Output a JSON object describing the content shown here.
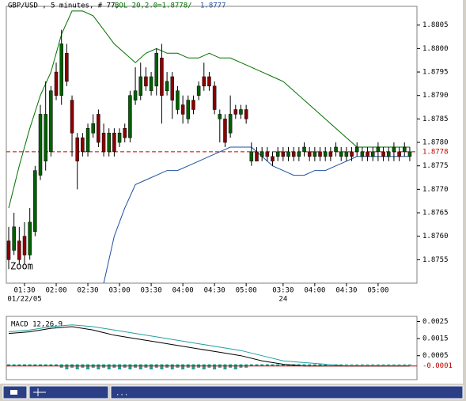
{
  "chart_data": [
    {
      "type": "candlestick",
      "title": "GBP/USD , 5 minutes, # 77,",
      "indicator_label": "BOL 20,2.0=1.8778/",
      "indicator_label_2": "1.8777",
      "annotation": "Zoom",
      "categories": [
        null,
        null,
        null,
        "01:30",
        null,
        null,
        null,
        null,
        null,
        "02:00",
        null,
        null,
        null,
        null,
        null,
        "02:30",
        null,
        null,
        null,
        null,
        null,
        "03:00",
        null,
        null,
        null,
        null,
        null,
        "03:30",
        null,
        null,
        null,
        null,
        null,
        "04:00",
        null,
        null,
        null,
        null,
        null,
        "04:30",
        null,
        null,
        null,
        null,
        null,
        "05:00",
        null,
        null,
        null,
        null,
        null,
        null,
        "03:30",
        null,
        null,
        null,
        null,
        null,
        "04:00",
        null,
        null,
        null,
        null,
        null,
        "04:30",
        null,
        null,
        null,
        null,
        null,
        "05:00",
        null,
        null,
        null,
        null,
        null,
        null
      ],
      "dates": [
        null,
        null,
        null,
        "01/22/05",
        null,
        null,
        null,
        null,
        null,
        null,
        null,
        null,
        null,
        null,
        null,
        null,
        null,
        null,
        null,
        null,
        null,
        null,
        null,
        null,
        null,
        null,
        null,
        null,
        null,
        null,
        null,
        null,
        null,
        null,
        null,
        null,
        null,
        null,
        null,
        null,
        null,
        null,
        null,
        null,
        null,
        null,
        null,
        null,
        null,
        null,
        null,
        null,
        "24",
        null,
        null,
        null,
        null,
        null,
        null,
        null,
        null,
        null,
        null,
        null,
        null,
        null,
        null,
        null,
        null,
        null,
        null,
        null,
        null,
        null,
        null,
        null,
        null
      ],
      "open": [
        1.8759,
        1.8757,
        1.8759,
        1.876,
        1.8756,
        1.8761,
        1.8773,
        1.8776,
        1.8778,
        1.8795,
        1.879,
        1.8799,
        1.8789,
        1.8781,
        1.8781,
        1.8778,
        1.8782,
        1.8786,
        1.8782,
        1.8778,
        1.8782,
        1.878,
        1.8783,
        1.8781,
        1.8789,
        1.879,
        1.8794,
        1.8791,
        1.8792,
        1.8798,
        1.8791,
        1.8794,
        1.8787,
        1.8788,
        1.8785,
        1.8789,
        1.879,
        1.8794,
        1.8794,
        1.8792,
        1.8785,
        1.8785,
        1.8782,
        1.8787,
        1.8786,
        1.8787,
        1.8776,
        1.8778,
        1.8777,
        1.8778,
        1.8777,
        1.8777,
        1.8778,
        1.8777,
        1.8778,
        1.8777,
        1.8778,
        1.8778,
        1.8777,
        1.8778,
        1.8777,
        1.8778,
        1.8778,
        1.8777,
        1.8777,
        1.8778,
        1.8778,
        1.8777,
        1.8778,
        1.8777,
        1.8778,
        1.8778,
        1.8777,
        1.8778,
        1.8778,
        1.8778,
        1.8777
      ],
      "high": [
        1.8762,
        1.8765,
        1.8762,
        1.8763,
        1.8766,
        1.8775,
        1.8788,
        1.8793,
        1.8792,
        1.8797,
        1.8804,
        1.8801,
        1.879,
        1.8782,
        1.8782,
        1.8784,
        1.8786,
        1.8787,
        1.8784,
        1.8783,
        1.8783,
        1.8783,
        1.8784,
        1.8791,
        1.8796,
        1.8797,
        1.8796,
        1.8795,
        1.88,
        1.8801,
        1.8795,
        1.8795,
        1.8792,
        1.879,
        1.879,
        1.879,
        1.8793,
        1.8797,
        1.8795,
        1.8793,
        1.8787,
        1.8786,
        1.879,
        1.8788,
        1.8788,
        1.8788,
        1.878,
        1.8779,
        1.8779,
        1.8779,
        1.8778,
        1.8779,
        1.8779,
        1.8779,
        1.8779,
        1.8779,
        1.878,
        1.8779,
        1.8779,
        1.8779,
        1.8779,
        1.8779,
        1.878,
        1.8779,
        1.8779,
        1.8779,
        1.878,
        1.8779,
        1.8779,
        1.8779,
        1.878,
        1.8779,
        1.8779,
        1.878,
        1.8779,
        1.878,
        1.8779
      ],
      "low": [
        1.8753,
        1.8756,
        1.8754,
        1.8754,
        1.8755,
        1.876,
        1.8772,
        1.8774,
        1.8777,
        1.8789,
        1.8788,
        1.8792,
        1.8777,
        1.877,
        1.8777,
        1.8777,
        1.8781,
        1.8779,
        1.8777,
        1.8777,
        1.8777,
        1.8779,
        1.878,
        1.878,
        1.8788,
        1.8789,
        1.8791,
        1.879,
        1.879,
        1.8784,
        1.879,
        1.8785,
        1.8786,
        1.8784,
        1.8784,
        1.8786,
        1.8789,
        1.8791,
        1.8791,
        1.8786,
        1.878,
        1.8779,
        1.8781,
        1.8785,
        1.8785,
        1.8784,
        1.8775,
        1.8776,
        1.8776,
        1.8776,
        1.8775,
        1.8776,
        1.8776,
        1.8776,
        1.8776,
        1.8776,
        1.8777,
        1.8776,
        1.8776,
        1.8776,
        1.8776,
        1.8776,
        1.8777,
        1.8776,
        1.8776,
        1.8776,
        1.8777,
        1.8776,
        1.8776,
        1.8776,
        1.8776,
        1.8776,
        1.8776,
        1.8776,
        1.8776,
        1.8777,
        1.8776
      ],
      "close": [
        1.8755,
        1.8762,
        1.8755,
        1.8756,
        1.8763,
        1.8774,
        1.8786,
        1.8786,
        1.8791,
        1.879,
        1.8801,
        1.8793,
        1.8782,
        1.8776,
        1.8778,
        1.8783,
        1.8784,
        1.878,
        1.8778,
        1.8782,
        1.8778,
        1.8782,
        1.8781,
        1.879,
        1.8791,
        1.8794,
        1.8792,
        1.8794,
        1.8799,
        1.879,
        1.8793,
        1.8789,
        1.8791,
        1.8786,
        1.8789,
        1.8787,
        1.8792,
        1.8792,
        1.8792,
        1.8787,
        1.8786,
        1.878,
        1.8786,
        1.8786,
        1.8787,
        1.8785,
        1.8778,
        1.8776,
        1.8778,
        1.8777,
        1.8776,
        1.8778,
        1.8777,
        1.8778,
        1.8777,
        1.8778,
        1.8779,
        1.8777,
        1.8778,
        1.8777,
        1.8778,
        1.8777,
        1.8779,
        1.8778,
        1.8778,
        1.8777,
        1.8779,
        1.8778,
        1.8777,
        1.8778,
        1.8779,
        1.8777,
        1.8778,
        1.8779,
        1.8777,
        1.8779,
        1.8778
      ],
      "up_color": "#006000",
      "down_color": "#8b0000",
      "bands": [
        {
          "color": "#007000",
          "x": [
            0,
            2,
            4,
            6,
            8,
            10,
            12,
            14,
            16,
            18,
            20,
            22,
            24,
            26,
            28,
            30,
            32,
            34,
            36,
            38,
            40,
            42,
            44,
            46,
            48,
            50,
            52,
            54,
            56,
            58,
            60,
            62,
            64,
            66,
            68,
            70,
            72,
            74,
            76
          ],
          "values": [
            1.8766,
            1.8775,
            1.8783,
            1.879,
            1.8795,
            1.8803,
            1.8808,
            1.8808,
            1.8807,
            1.8804,
            1.8801,
            1.8799,
            1.8797,
            1.8799,
            1.88,
            1.8799,
            1.8799,
            1.8798,
            1.8798,
            1.8799,
            1.8798,
            1.8798,
            1.8797,
            1.8796,
            1.8795,
            1.8794,
            1.8793,
            1.8791,
            1.8789,
            1.8787,
            1.8785,
            1.8783,
            1.8781,
            1.8779,
            1.8779,
            1.8779,
            1.8779,
            1.8779,
            1.8779
          ]
        },
        {
          "color": "#2050a0",
          "x": [
            0,
            2,
            4,
            6,
            8,
            10,
            12,
            14,
            16,
            18,
            20,
            22,
            24,
            26,
            28,
            30,
            32,
            34,
            36,
            38,
            40,
            42,
            44,
            46,
            48,
            50,
            52,
            54,
            56,
            58,
            60,
            62,
            64,
            66,
            68,
            70,
            72,
            74,
            76
          ],
          "values": [
            null,
            null,
            null,
            null,
            null,
            null,
            null,
            null,
            null,
            1.875,
            1.876,
            1.8766,
            1.8771,
            1.8772,
            1.8773,
            1.8774,
            1.8774,
            1.8775,
            1.8776,
            1.8777,
            1.8778,
            1.8779,
            1.8779,
            1.8779,
            1.8777,
            1.8775,
            1.8774,
            1.8773,
            1.8773,
            1.8774,
            1.8774,
            1.8775,
            1.8776,
            1.8777,
            1.8777,
            1.8777,
            1.8777,
            1.8777,
            1.8777
          ]
        }
      ],
      "ylim": [
        1.875,
        1.8809
      ],
      "yticks": [
        1.8755,
        {
          "value": 1.876,
          "label": "1.8760"
        },
        1.8765,
        {
          "value": 1.877,
          "label": "1.8770"
        },
        1.8775,
        {
          "value": 1.878,
          "label": "1.8780"
        },
        1.8785,
        {
          "value": 1.879,
          "label": "1.8790"
        },
        1.8795,
        {
          "value": 1.88,
          "label": "1.8800"
        },
        1.8805
      ],
      "last_price": 1.8778,
      "last_color": "#c00000"
    },
    {
      "type": "macd",
      "title": "MACD 12,26,9",
      "macd": {
        "color": "#000000",
        "x": [
          0,
          4,
          8,
          12,
          16,
          20,
          24,
          28,
          32,
          36,
          40,
          44,
          48,
          52,
          56,
          60,
          64,
          68,
          72,
          76
        ],
        "values": [
          0.0018,
          0.0019,
          0.0021,
          0.0022,
          0.002,
          0.0017,
          0.0015,
          0.0013,
          0.0011,
          0.0009,
          0.0007,
          0.0005,
          0.0002,
          0,
          -0.0001,
          -0.0001,
          -0.0001,
          -0.0001,
          -0.0001,
          -0.0001
        ]
      },
      "signal": {
        "color": "#20a0a0",
        "x": [
          0,
          4,
          8,
          12,
          16,
          20,
          24,
          28,
          32,
          36,
          40,
          44,
          48,
          52,
          56,
          60,
          64,
          68,
          72,
          76
        ],
        "values": [
          0.0019,
          0.002,
          0.0022,
          0.0023,
          0.0022,
          0.002,
          0.0018,
          0.0016,
          0.0014,
          0.0012,
          0.001,
          0.0008,
          0.0005,
          0.0002,
          0.0001,
          0,
          -0.0001,
          -0.0001,
          -0.0001,
          -0.0001
        ]
      },
      "histogram": {
        "color": "#20a090",
        "values": [
          -0.0001,
          -0.0001,
          -0.0001,
          -0.0001,
          -0.0001,
          -0.0001,
          -0.0001,
          -0.0001,
          -0.0001,
          -0.0001,
          -0.0002,
          -0.0003,
          -0.0002,
          -0.0003,
          -0.0002,
          -0.0003,
          -0.0002,
          -0.0003,
          -0.0002,
          -0.0003,
          -0.0002,
          -0.0003,
          -0.0002,
          -0.0003,
          -0.0002,
          -0.0003,
          -0.0002,
          -0.0003,
          -0.0002,
          -0.0003,
          -0.0002,
          -0.0003,
          -0.0002,
          -0.0003,
          -0.0002,
          -0.0003,
          -0.0002,
          -0.0003,
          -0.0002,
          -0.0003,
          -0.0002,
          -0.0003,
          -0.0002,
          -0.0003,
          -0.0002,
          -0.0002,
          -0.0001,
          -0.0001,
          -0.0001,
          -0.0001,
          -0.0001,
          -0.0001,
          -0.0001,
          -0.0001,
          -0.0001,
          -0.0001,
          -0.0001,
          -0.0001,
          -0.0001,
          -0.0001,
          -0.0001,
          0,
          0,
          0,
          0,
          0,
          0,
          0,
          0,
          0,
          0,
          0,
          0,
          0,
          0,
          0,
          0
        ]
      },
      "ylim": [
        -0.0009,
        0.0028
      ],
      "yticks": [
        0.0005,
        0.0015,
        0.0025
      ],
      "last_value": -0.0001,
      "last_color": "#c00000"
    }
  ],
  "status_text": "..."
}
